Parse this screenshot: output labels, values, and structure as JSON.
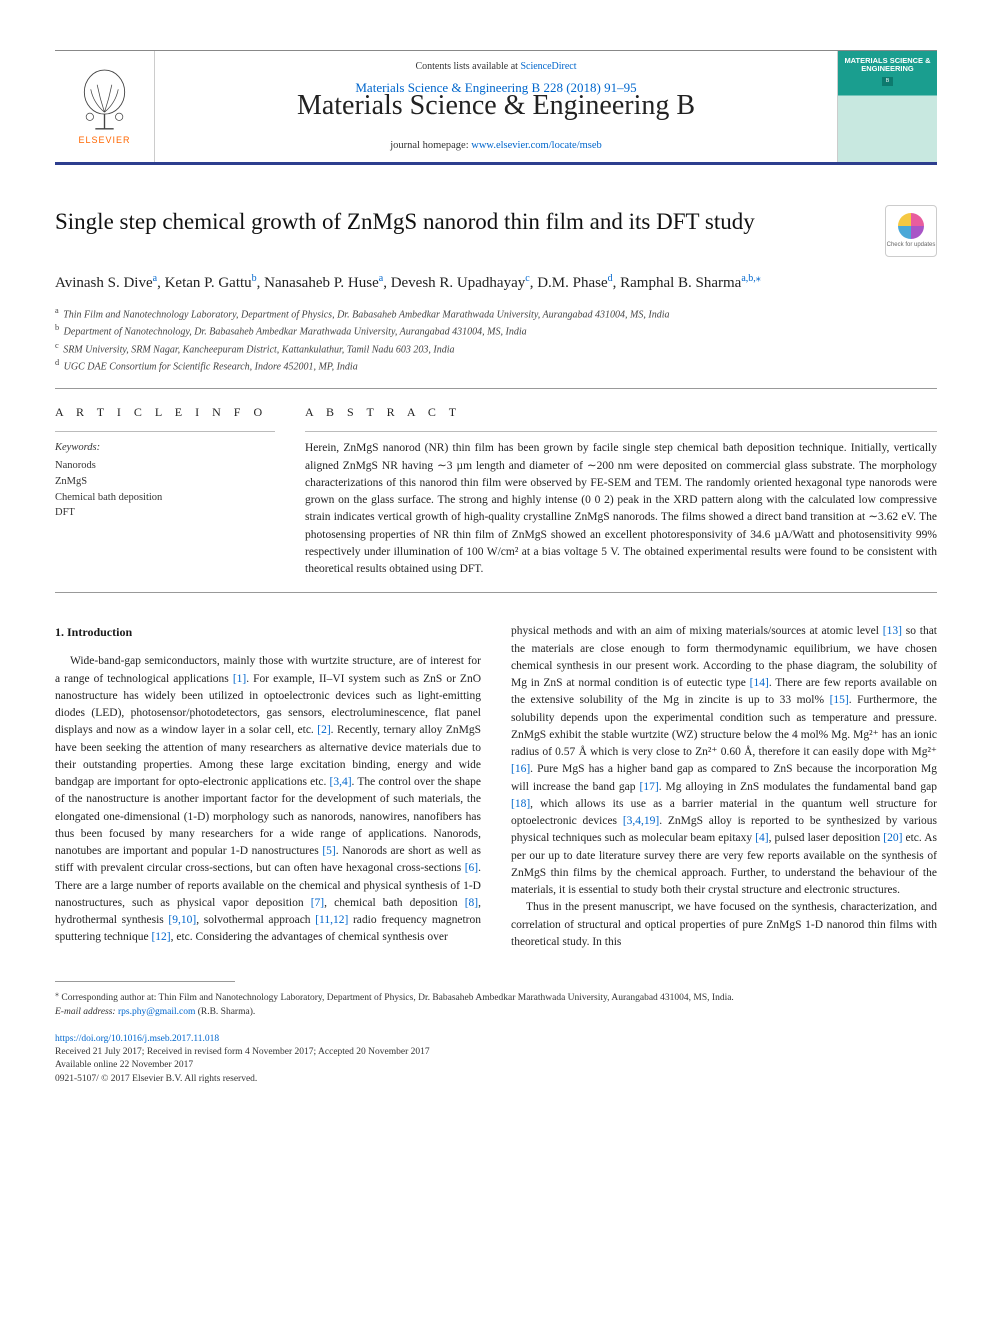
{
  "header": {
    "meta_line": "Materials Science & Engineering B 228 (2018) 91–95",
    "contents_prefix": "Contents lists available at ",
    "sciencedirect": "ScienceDirect",
    "journal_name": "Materials Science & Engineering B",
    "homepage_prefix": "journal homepage: ",
    "homepage_url": "www.elsevier.com/locate/mseb",
    "elsevier": "ELSEVIER",
    "cover_title": "MATERIALS SCIENCE & ENGINEERING",
    "cover_sub": "B"
  },
  "title": "Single step chemical growth of ZnMgS nanorod thin film and its DFT study",
  "crossmark": "Check for updates",
  "authors_html": "Avinash S. Dive<sup class='sup'>a</sup>, Ketan P. Gattu<sup class='sup'>b</sup>, Nanasaheb P. Huse<sup class='sup'>a</sup>, Devesh R. Upadhayay<sup class='sup'>c</sup>, D.M. Phase<sup class='sup'>d</sup>, Ramphal B. Sharma<sup class='sup'>a,b,⁎</sup>",
  "affiliations": [
    {
      "label": "a",
      "text": "Thin Film and Nanotechnology Laboratory, Department of Physics, Dr. Babasaheb Ambedkar Marathwada University, Aurangabad 431004, MS, India"
    },
    {
      "label": "b",
      "text": "Department of Nanotechnology, Dr. Babasaheb Ambedkar Marathwada University, Aurangabad 431004, MS, India"
    },
    {
      "label": "c",
      "text": "SRM University, SRM Nagar, Kancheepuram District, Kattankulathur, Tamil Nadu 603 203, India"
    },
    {
      "label": "d",
      "text": "UGC DAE Consortium for Scientific Research, Indore 452001, MP, India"
    }
  ],
  "article_info_heading": "A R T I C L E  I N F O",
  "abstract_heading": "A B S T R A C T",
  "keywords_label": "Keywords:",
  "keywords": [
    "Nanorods",
    "ZnMgS",
    "Chemical bath deposition",
    "DFT"
  ],
  "abstract": "Herein, ZnMgS nanorod (NR) thin film has been grown by facile single step chemical bath deposition technique. Initially, vertically aligned ZnMgS NR having ∼3 µm length and diameter of ∼200 nm were deposited on commercial glass substrate. The morphology characterizations of this nanorod thin film were observed by FE-SEM and TEM. The randomly oriented hexagonal type nanorods were grown on the glass surface. The strong and highly intense (0 0 2) peak in the XRD pattern along with the calculated low compressive strain indicates vertical growth of high-quality crystalline ZnMgS nanorods. The films showed a direct band transition at ∼3.62 eV. The photosensing properties of NR thin film of ZnMgS showed an excellent photoresponsivity of 34.6 µA/Watt and photosensitivity 99% respectively under illumination of 100 W/cm² at a bias voltage 5 V. The obtained experimental results were found to be consistent with theoretical results obtained using DFT.",
  "intro_heading": "1. Introduction",
  "intro_col1": "Wide-band-gap semiconductors, mainly those with wurtzite structure, are of interest for a range of technological applications <span class='ref'>[1]</span>. For example, II–VI system such as ZnS or ZnO nanostructure has widely been utilized in optoelectronic devices such as light-emitting diodes (LED), photosensor/photodetectors, gas sensors, electroluminescence, flat panel displays and now as a window layer in a solar cell, etc. <span class='ref'>[2]</span>. Recently, ternary alloy ZnMgS have been seeking the attention of many researchers as alternative device materials due to their outstanding properties. Among these large excitation binding, energy and wide bandgap are important for opto-electronic applications etc. <span class='ref'>[3,4]</span>. The control over the shape of the nanostructure is another important factor for the development of such materials, the elongated one-dimensional (1-D) morphology such as nanorods, nanowires, nanofibers has thus been focused by many researchers for a wide range of applications. Nanorods, nanotubes are important and popular 1-D nanostructures <span class='ref'>[5]</span>. Nanorods are short as well as stiff with prevalent circular cross-sections, but can often have hexagonal cross-sections <span class='ref'>[6]</span>. There are a large number of reports available on the chemical and physical synthesis of 1-D nanostructures, such as physical vapor deposition <span class='ref'>[7]</span>, chemical bath deposition <span class='ref'>[8]</span>, hydrothermal synthesis <span class='ref'>[9,10]</span>, solvothermal approach <span class='ref'>[11,12]</span> radio frequency magnetron sputtering technique <span class='ref'>[12]</span>, etc. Considering the advantages of chemical synthesis over",
  "intro_col2_p1": "physical methods and with an aim of mixing materials/sources at atomic level <span class='ref'>[13]</span> so that the materials are close enough to form thermodynamic equilibrium, we have chosen chemical synthesis in our present work. According to the phase diagram, the solubility of Mg in ZnS at normal condition is of eutectic type <span class='ref'>[14]</span>. There are few reports available on the extensive solubility of the Mg in zincite is up to 33 mol% <span class='ref'>[15]</span>. Furthermore, the solubility depends upon the experimental condition such as temperature and pressure. ZnMgS exhibit the stable wurtzite (WZ) structure below the 4 mol% Mg. Mg²⁺ has an ionic radius of 0.57 Å which is very close to Zn²⁺ 0.60 Å, therefore it can easily dope with Mg²⁺ <span class='ref'>[16]</span>. Pure MgS has a higher band gap as compared to ZnS because the incorporation Mg will increase the band gap <span class='ref'>[17]</span>. Mg alloying in ZnS modulates the fundamental band gap <span class='ref'>[18]</span>, which allows its use as a barrier material in the quantum well structure for optoelectronic devices <span class='ref'>[3,4,19]</span>. ZnMgS alloy is reported to be synthesized by various physical techniques such as molecular beam epitaxy <span class='ref'>[4]</span>, pulsed laser deposition <span class='ref'>[20]</span> etc. As per our up to date literature survey there are very few reports available on the synthesis of ZnMgS thin films by the chemical approach. Further, to understand the behaviour of the materials, it is essential to study both their crystal structure and electronic structures.",
  "intro_col2_p2": "Thus in the present manuscript, we have focused on the synthesis, characterization, and correlation of structural and optical properties of pure ZnMgS 1-D nanorod thin films with theoretical study. In this",
  "footnote": {
    "label": "⁎",
    "text": "Corresponding author at: Thin Film and Nanotechnology Laboratory, Department of Physics, Dr. Babasaheb Ambedkar Marathwada University, Aurangabad 431004, MS, India.",
    "email_label": "E-mail address: ",
    "email": "rps.phy@gmail.com",
    "email_suffix": " (R.B. Sharma)."
  },
  "doi": {
    "url": "https://doi.org/10.1016/j.mseb.2017.11.018",
    "received": "Received 21 July 2017; Received in revised form 4 November 2017; Accepted 20 November 2017",
    "online": "Available online 22 November 2017",
    "copyright": "0921-5107/ © 2017 Elsevier B.V. All rights reserved."
  },
  "colors": {
    "link": "#0066cc",
    "banner_rule": "#2d3e8e",
    "elsevier_orange": "#ff6600",
    "cover_teal": "#1a9e8f"
  }
}
